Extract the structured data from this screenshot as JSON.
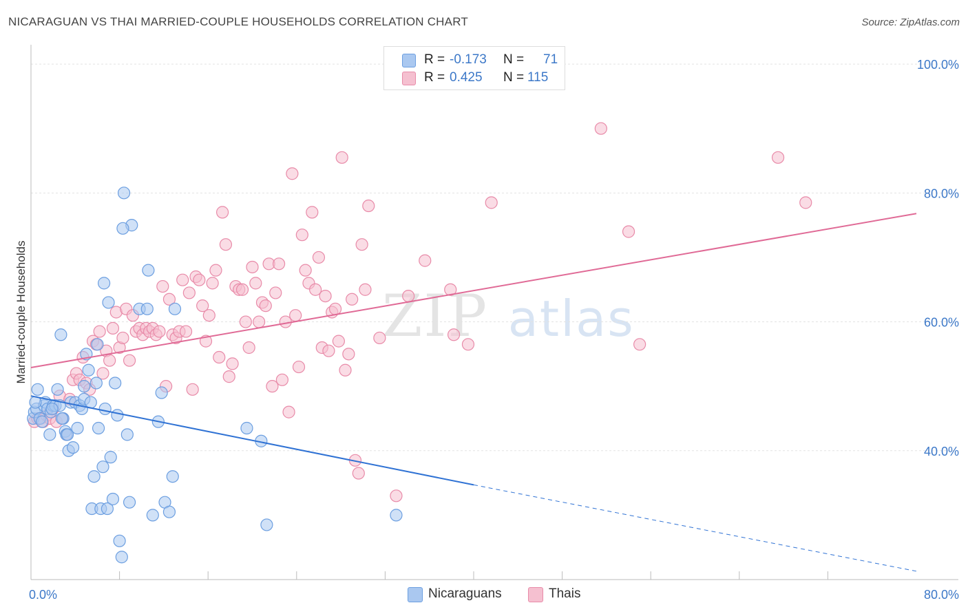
{
  "title": "NICARAGUAN VS THAI MARRIED-COUPLE HOUSEHOLDS CORRELATION CHART",
  "source": "Source: ZipAtlas.com",
  "watermark": {
    "zip": "ZIP",
    "atlas": "atlas"
  },
  "colors": {
    "blue_fill": "#aac8f0",
    "blue_stroke": "#6b9ee0",
    "blue_line": "#2f72d4",
    "pink_fill": "#f5c0d0",
    "pink_stroke": "#e88aa8",
    "pink_line": "#e06a96",
    "tick_label": "#3c78c8",
    "grid": "#e2e2e2"
  },
  "legend": {
    "rows": [
      {
        "r_label": "R =",
        "r_value": "-0.173",
        "n_label": "N =",
        "n_value": "71"
      },
      {
        "r_label": "R =",
        "r_value": "0.425",
        "n_label": "N =",
        "n_value": "115"
      }
    ]
  },
  "bottom_legend": {
    "nicaraguans": "Nicaraguans",
    "thais": "Thais"
  },
  "chart_data": {
    "type": "scatter",
    "xlabel": "",
    "ylabel": "Married-couple Households",
    "xlim": [
      0,
      80
    ],
    "ylim": [
      20,
      103
    ],
    "x_tick_labels": [
      {
        "value": 0,
        "label": "0.0%"
      },
      {
        "value": 80,
        "label": "80.0%"
      }
    ],
    "y_tick_labels": [
      {
        "value": 100,
        "label": "100.0%"
      },
      {
        "value": 80,
        "label": "80.0%"
      },
      {
        "value": 60,
        "label": "60.0%"
      },
      {
        "value": 40,
        "label": "40.0%"
      }
    ],
    "y_gridlines": [
      100,
      80,
      60,
      40
    ],
    "x_minor_ticks": [
      8,
      16,
      24,
      32,
      40,
      48,
      56,
      64,
      72
    ],
    "series": [
      {
        "name": "Nicaraguans",
        "r": -0.173,
        "n": 71,
        "trend": {
          "x_start": 0,
          "y_start": 48.5,
          "x_solid_end": 40,
          "y_solid_end": 34.7,
          "x_dash_end": 80,
          "y_dash_end": 21.3
        },
        "points": [
          [
            0.2,
            45
          ],
          [
            0.3,
            46
          ],
          [
            0.5,
            46.5
          ],
          [
            0.6,
            49.5
          ],
          [
            0.8,
            45
          ],
          [
            1,
            44.5
          ],
          [
            1.2,
            47
          ],
          [
            1.3,
            47.5
          ],
          [
            1.5,
            46.5
          ],
          [
            1.7,
            42.5
          ],
          [
            1.8,
            46
          ],
          [
            2,
            47
          ],
          [
            2.2,
            47
          ],
          [
            2.4,
            49.5
          ],
          [
            2.6,
            47
          ],
          [
            2.7,
            58
          ],
          [
            2.9,
            45
          ],
          [
            3.1,
            43
          ],
          [
            3.2,
            42.5
          ],
          [
            3.4,
            40
          ],
          [
            3.6,
            47.5
          ],
          [
            3.8,
            40.5
          ],
          [
            4,
            47.5
          ],
          [
            4.2,
            43.5
          ],
          [
            4.4,
            47
          ],
          [
            4.6,
            46.5
          ],
          [
            4.8,
            48
          ],
          [
            5,
            55
          ],
          [
            5.2,
            52.5
          ],
          [
            5.4,
            47.5
          ],
          [
            5.5,
            31
          ],
          [
            5.7,
            36
          ],
          [
            5.9,
            50.5
          ],
          [
            6.1,
            43.5
          ],
          [
            6.3,
            31
          ],
          [
            6.5,
            37.5
          ],
          [
            6.7,
            46.5
          ],
          [
            6.9,
            31
          ],
          [
            7,
            63
          ],
          [
            7.2,
            39
          ],
          [
            7.4,
            32.5
          ],
          [
            7.6,
            50.5
          ],
          [
            7.8,
            45.5
          ],
          [
            8,
            26
          ],
          [
            8.2,
            23.5
          ],
          [
            8.4,
            80
          ],
          [
            8.7,
            42.5
          ],
          [
            8.9,
            32
          ],
          [
            9.1,
            75
          ],
          [
            9.8,
            62
          ],
          [
            10.5,
            62
          ],
          [
            11,
            30
          ],
          [
            11.5,
            44.5
          ],
          [
            12.1,
            32
          ],
          [
            12.5,
            30.5
          ],
          [
            12.8,
            36
          ],
          [
            6.6,
            66
          ],
          [
            8.3,
            74.5
          ],
          [
            10.6,
            68
          ],
          [
            4.8,
            50
          ],
          [
            6,
            56.5
          ],
          [
            0.4,
            47.5
          ],
          [
            1.9,
            46.5
          ],
          [
            2.8,
            45
          ],
          [
            3.3,
            42.5
          ],
          [
            13,
            62
          ],
          [
            19.5,
            43.5
          ],
          [
            20.8,
            41.5
          ],
          [
            21.3,
            28.5
          ],
          [
            33,
            30
          ],
          [
            11.8,
            49
          ]
        ]
      },
      {
        "name": "Thais",
        "r": 0.425,
        "n": 115,
        "trend": {
          "x_start": 0,
          "y_start": 52.9,
          "x_end": 80,
          "y_end": 76.8
        },
        "points": [
          [
            0.3,
            44.5
          ],
          [
            0.6,
            45
          ],
          [
            0.9,
            45
          ],
          [
            1.1,
            44.5
          ],
          [
            1.4,
            45.5
          ],
          [
            1.7,
            45
          ],
          [
            2,
            46.5
          ],
          [
            2.3,
            44.5
          ],
          [
            2.6,
            48.5
          ],
          [
            2.9,
            45
          ],
          [
            3.2,
            42.5
          ],
          [
            3.5,
            48
          ],
          [
            3.8,
            51
          ],
          [
            4.1,
            52
          ],
          [
            4.4,
            51
          ],
          [
            4.7,
            54.5
          ],
          [
            5,
            50.5
          ],
          [
            5.3,
            49.5
          ],
          [
            5.6,
            57
          ],
          [
            5.9,
            56.5
          ],
          [
            6.2,
            58.5
          ],
          [
            6.5,
            52
          ],
          [
            6.8,
            55.5
          ],
          [
            7.1,
            54
          ],
          [
            7.4,
            59
          ],
          [
            7.7,
            61.5
          ],
          [
            8,
            56
          ],
          [
            8.3,
            57.5
          ],
          [
            8.6,
            62
          ],
          [
            8.9,
            54
          ],
          [
            9.2,
            61
          ],
          [
            9.5,
            58.5
          ],
          [
            9.8,
            59
          ],
          [
            10.1,
            58
          ],
          [
            10.4,
            59
          ],
          [
            10.7,
            58.5
          ],
          [
            11,
            59
          ],
          [
            11.3,
            58
          ],
          [
            11.6,
            58.5
          ],
          [
            11.9,
            65.5
          ],
          [
            12.2,
            50
          ],
          [
            12.5,
            63.5
          ],
          [
            12.8,
            58
          ],
          [
            13.1,
            57.5
          ],
          [
            13.4,
            58.5
          ],
          [
            13.7,
            66.5
          ],
          [
            14,
            58.5
          ],
          [
            14.3,
            64.5
          ],
          [
            14.6,
            49.5
          ],
          [
            14.9,
            67
          ],
          [
            15.2,
            66.5
          ],
          [
            15.5,
            62.5
          ],
          [
            15.8,
            57
          ],
          [
            16.1,
            61
          ],
          [
            16.4,
            66
          ],
          [
            16.7,
            68
          ],
          [
            17,
            54.5
          ],
          [
            17.3,
            77
          ],
          [
            17.6,
            72
          ],
          [
            17.9,
            51.5
          ],
          [
            18.2,
            53.5
          ],
          [
            18.5,
            65.5
          ],
          [
            18.8,
            65
          ],
          [
            19.1,
            65
          ],
          [
            19.4,
            60
          ],
          [
            19.7,
            56
          ],
          [
            20,
            68.5
          ],
          [
            20.3,
            66
          ],
          [
            20.6,
            60
          ],
          [
            20.9,
            63
          ],
          [
            21.2,
            62.5
          ],
          [
            21.5,
            69
          ],
          [
            21.8,
            50
          ],
          [
            22.1,
            64.5
          ],
          [
            22.4,
            69
          ],
          [
            22.7,
            51
          ],
          [
            23,
            60
          ],
          [
            23.3,
            46
          ],
          [
            23.6,
            83
          ],
          [
            23.9,
            61
          ],
          [
            24.2,
            53
          ],
          [
            24.5,
            73.5
          ],
          [
            24.8,
            68
          ],
          [
            25.1,
            66
          ],
          [
            25.4,
            77
          ],
          [
            25.7,
            65
          ],
          [
            26,
            70
          ],
          [
            26.3,
            56
          ],
          [
            26.6,
            64
          ],
          [
            26.9,
            55.5
          ],
          [
            27.2,
            61.5
          ],
          [
            27.5,
            62
          ],
          [
            27.8,
            57
          ],
          [
            28.1,
            85.5
          ],
          [
            28.4,
            52.5
          ],
          [
            28.7,
            55
          ],
          [
            29,
            63.5
          ],
          [
            29.3,
            38.5
          ],
          [
            29.6,
            36.5
          ],
          [
            29.9,
            72
          ],
          [
            30.2,
            65
          ],
          [
            30.5,
            78
          ],
          [
            31.5,
            57.5
          ],
          [
            33,
            33
          ],
          [
            34.1,
            64
          ],
          [
            35.6,
            69.5
          ],
          [
            37.9,
            65
          ],
          [
            38.2,
            58
          ],
          [
            39.5,
            56.5
          ],
          [
            41.6,
            78.5
          ],
          [
            51.5,
            90
          ],
          [
            54,
            74
          ],
          [
            55,
            56.5
          ],
          [
            67.5,
            85.5
          ],
          [
            70,
            78.5
          ]
        ]
      }
    ]
  }
}
